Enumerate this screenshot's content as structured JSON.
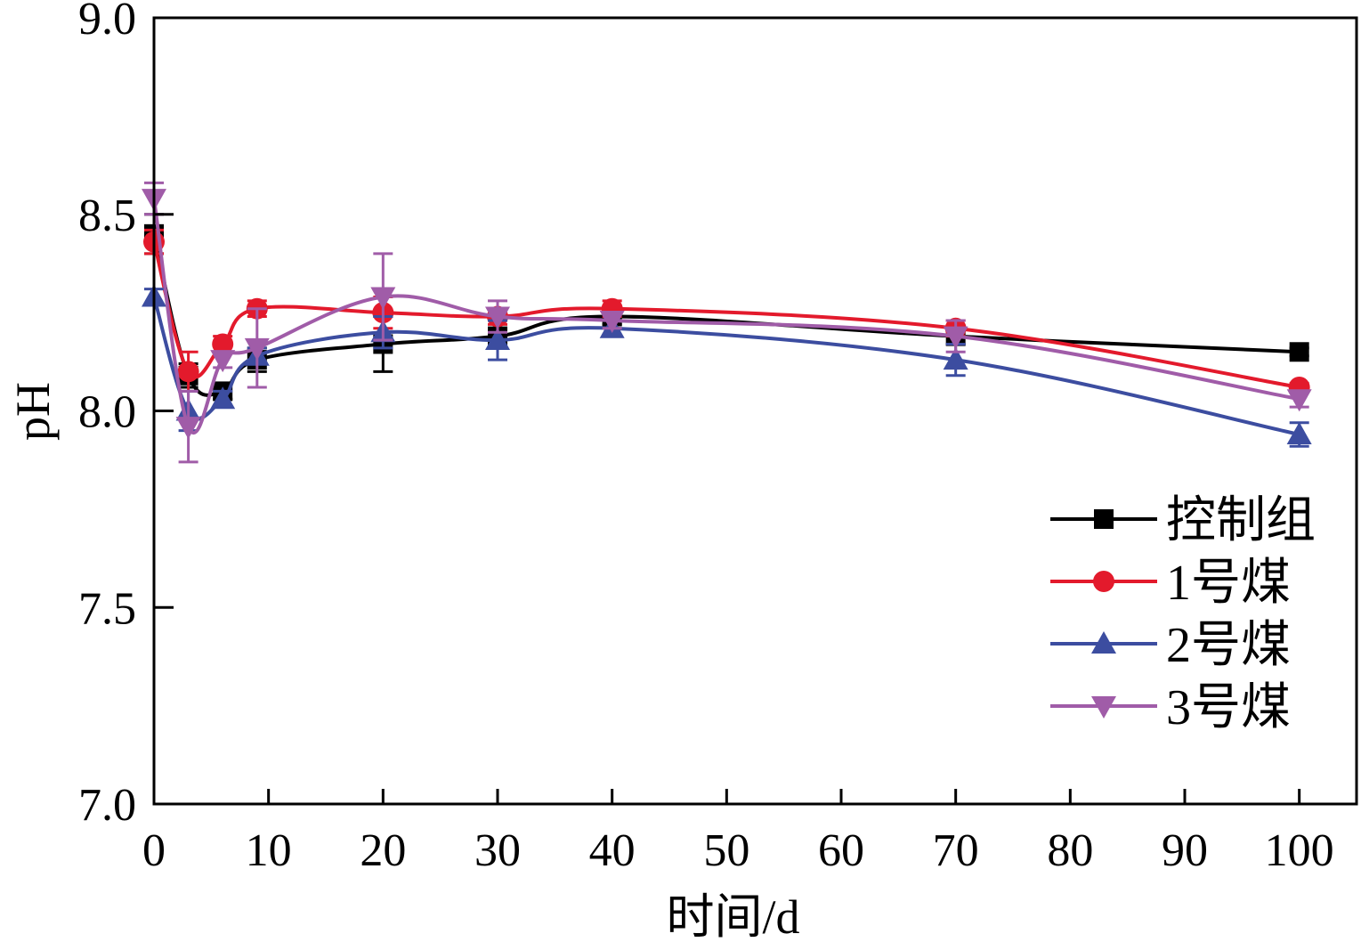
{
  "chart_data": {
    "type": "line",
    "xlabel": "时间/d",
    "ylabel": "pH",
    "xlim": [
      0,
      105
    ],
    "ylim": [
      7.0,
      9.0
    ],
    "x_ticks": [
      "0",
      "10",
      "20",
      "30",
      "40",
      "50",
      "60",
      "70",
      "80",
      "90",
      "100"
    ],
    "y_ticks": [
      "7.0",
      "7.5",
      "8.0",
      "8.5",
      "9.0"
    ],
    "legend_position": "bottom-right",
    "grid": false,
    "x": [
      0,
      3,
      6,
      9,
      20,
      30,
      40,
      70,
      100
    ],
    "series": [
      {
        "name": "控制组",
        "color": "#000000",
        "marker": "square",
        "values": [
          8.45,
          8.09,
          8.05,
          8.13,
          8.17,
          8.19,
          8.24,
          8.19,
          8.15
        ],
        "errors": [
          0.05,
          0.03,
          0.02,
          0.03,
          0.07,
          0.02,
          0.02,
          0.02,
          0.01
        ]
      },
      {
        "name": "1号煤",
        "color": "#e31a2c",
        "marker": "circle",
        "values": [
          8.43,
          8.1,
          8.17,
          8.26,
          8.25,
          8.24,
          8.26,
          8.21,
          8.06
        ],
        "errors": [
          0.03,
          0.05,
          0.02,
          0.02,
          0.04,
          0.02,
          0.02,
          0.02,
          0.01
        ]
      },
      {
        "name": "2号煤",
        "color": "#3c4da0",
        "marker": "triangle-up",
        "values": [
          8.29,
          8.0,
          8.03,
          8.14,
          8.2,
          8.18,
          8.21,
          8.13,
          7.94
        ],
        "errors": [
          0.02,
          0.05,
          0.02,
          0.02,
          0.04,
          0.05,
          0.02,
          0.04,
          0.03
        ]
      },
      {
        "name": "3号煤",
        "color": "#a05ca8",
        "marker": "triangle-down",
        "values": [
          8.54,
          7.96,
          8.13,
          8.16,
          8.29,
          8.24,
          8.23,
          8.19,
          8.03
        ],
        "errors": [
          0.04,
          0.09,
          0.02,
          0.1,
          0.11,
          0.04,
          0.02,
          0.04,
          0.02
        ]
      }
    ]
  }
}
